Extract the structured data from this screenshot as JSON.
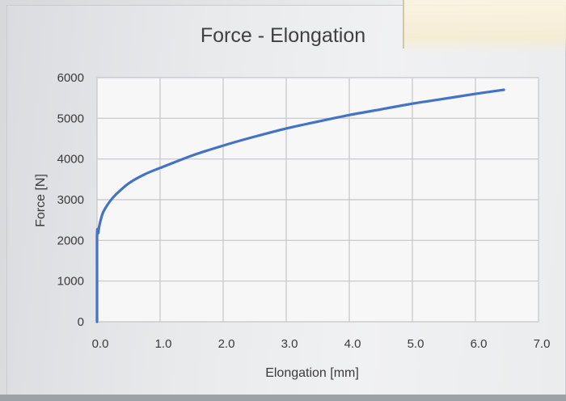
{
  "chart_data": {
    "type": "line",
    "title": "Force - Elongation",
    "xlabel": "Elongation [mm]",
    "ylabel": "Force [N]",
    "xlim": [
      0,
      7
    ],
    "ylim": [
      0,
      6000
    ],
    "x_ticks": [
      "0.0",
      "1.0",
      "2.0",
      "3.0",
      "4.0",
      "5.0",
      "6.0",
      "7.0"
    ],
    "y_ticks": [
      "0",
      "1000",
      "2000",
      "3000",
      "4000",
      "5000",
      "6000"
    ],
    "grid": true,
    "legend": "none",
    "line_color": "#4472c4",
    "series": [
      {
        "x": [
          0.0,
          0.0,
          0.02,
          0.03,
          0.05,
          0.1,
          0.2,
          0.3,
          0.5,
          0.75,
          1.0,
          1.5,
          2.0,
          2.5,
          3.0,
          3.5,
          4.0,
          4.5,
          5.0,
          5.5,
          6.0,
          6.45
        ],
        "y": [
          0,
          2100,
          2180,
          2300,
          2450,
          2700,
          2950,
          3130,
          3400,
          3620,
          3780,
          4080,
          4330,
          4550,
          4750,
          4920,
          5080,
          5220,
          5360,
          5480,
          5600,
          5700
        ]
      }
    ]
  }
}
